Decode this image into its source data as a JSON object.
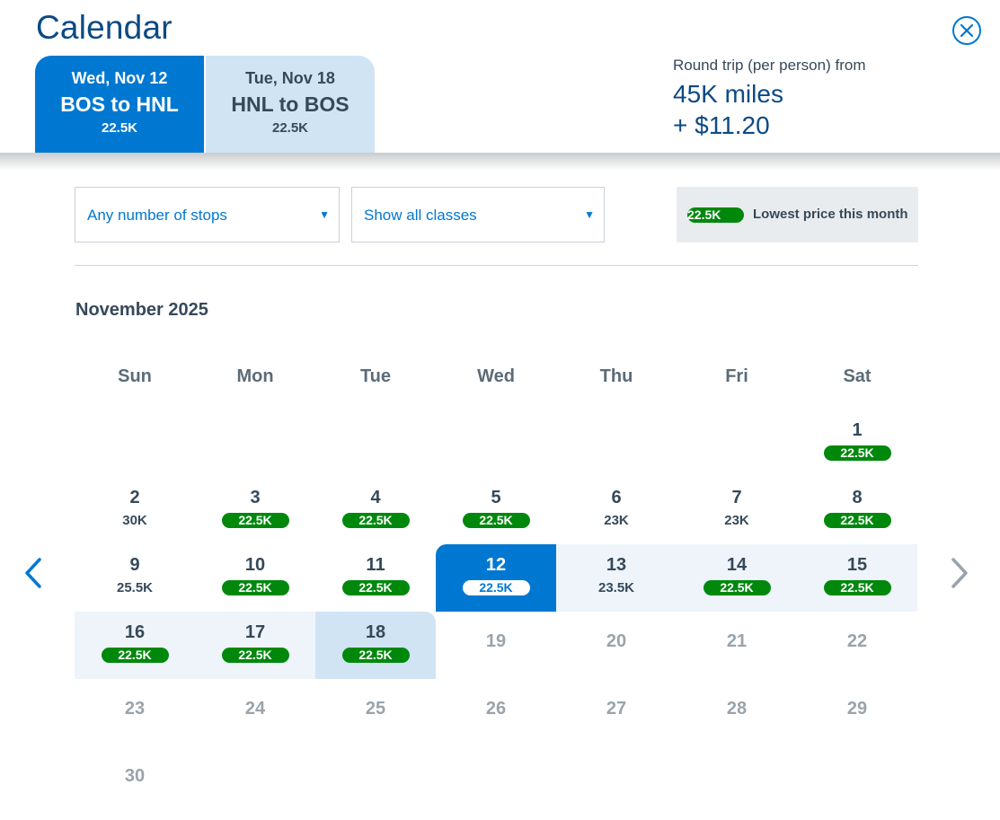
{
  "header": {
    "title": "Calendar",
    "tabs": [
      {
        "date": "Wed, Nov 12",
        "route": "BOS to HNL",
        "price": "22.5K"
      },
      {
        "date": "Tue, Nov 18",
        "route": "HNL to BOS",
        "price": "22.5K"
      }
    ],
    "summary": {
      "label": "Round trip (per person) from",
      "miles": "45K miles",
      "tax": "+ $11.20"
    }
  },
  "filters": {
    "stops": "Any number of stops",
    "classes": "Show all classes",
    "legend_price": "22.5K",
    "legend_text": "Lowest price this month"
  },
  "calendar": {
    "month": "November 2025",
    "weekdays": [
      "Sun",
      "Mon",
      "Tue",
      "Wed",
      "Thu",
      "Fri",
      "Sat"
    ],
    "first_weekday_index": 6,
    "selected_depart": 12,
    "selected_return": 18,
    "days": [
      {
        "day": "1",
        "price": "22.5K",
        "lowest": true
      },
      {
        "day": "2",
        "price": "30K",
        "lowest": false
      },
      {
        "day": "3",
        "price": "22.5K",
        "lowest": true
      },
      {
        "day": "4",
        "price": "22.5K",
        "lowest": true
      },
      {
        "day": "5",
        "price": "22.5K",
        "lowest": true
      },
      {
        "day": "6",
        "price": "23K",
        "lowest": false
      },
      {
        "day": "7",
        "price": "23K",
        "lowest": false
      },
      {
        "day": "8",
        "price": "22.5K",
        "lowest": true
      },
      {
        "day": "9",
        "price": "25.5K",
        "lowest": false
      },
      {
        "day": "10",
        "price": "22.5K",
        "lowest": true
      },
      {
        "day": "11",
        "price": "22.5K",
        "lowest": true
      },
      {
        "day": "12",
        "price": "22.5K",
        "lowest": true
      },
      {
        "day": "13",
        "price": "23.5K",
        "lowest": false
      },
      {
        "day": "14",
        "price": "22.5K",
        "lowest": true
      },
      {
        "day": "15",
        "price": "22.5K",
        "lowest": true
      },
      {
        "day": "16",
        "price": "22.5K",
        "lowest": true
      },
      {
        "day": "17",
        "price": "22.5K",
        "lowest": true
      },
      {
        "day": "18",
        "price": "22.5K",
        "lowest": true
      },
      {
        "day": "19",
        "price": null,
        "lowest": false
      },
      {
        "day": "20",
        "price": null,
        "lowest": false
      },
      {
        "day": "21",
        "price": null,
        "lowest": false
      },
      {
        "day": "22",
        "price": null,
        "lowest": false
      },
      {
        "day": "23",
        "price": null,
        "lowest": false
      },
      {
        "day": "24",
        "price": null,
        "lowest": false
      },
      {
        "day": "25",
        "price": null,
        "lowest": false
      },
      {
        "day": "26",
        "price": null,
        "lowest": false
      },
      {
        "day": "27",
        "price": null,
        "lowest": false
      },
      {
        "day": "28",
        "price": null,
        "lowest": false
      },
      {
        "day": "29",
        "price": null,
        "lowest": false
      },
      {
        "day": "30",
        "price": null,
        "lowest": false
      }
    ]
  },
  "colors": {
    "accent": "#0078d2",
    "dark_blue": "#0b4a85",
    "lowest_price_green": "#00880d",
    "range_bg": "#eef4f9",
    "return_bg": "#d0e4f4"
  },
  "icons": {
    "close": "close-icon",
    "prev": "chevron-left-icon",
    "next": "chevron-right-icon",
    "dropdown": "caret-down-icon"
  }
}
